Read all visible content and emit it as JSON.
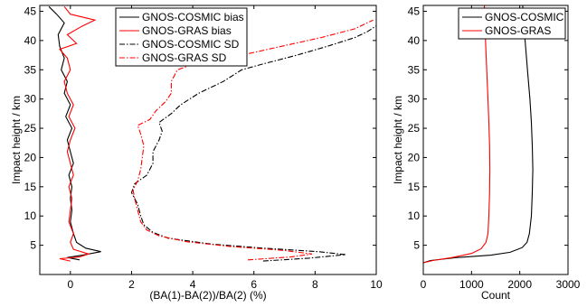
{
  "chart_data": [
    {
      "type": "line",
      "xlabel": "(BA(1)-BA(2))/BA(2) (%)",
      "ylabel": "Impact height / km",
      "xlim": [
        -1,
        10
      ],
      "ylim": [
        0,
        46
      ],
      "xticks": [
        "0",
        "2",
        "4",
        "6",
        "8",
        "10"
      ],
      "yticks": [
        "5",
        "10",
        "15",
        "20",
        "25",
        "30",
        "35",
        "40",
        "45"
      ],
      "grid": false,
      "legend_position": "top-center",
      "series": [
        {
          "name": "GNOS-COSMIC bias",
          "color": "#000000",
          "style": "solid",
          "points": [
            [
              0.3,
              2.5
            ],
            [
              -0.1,
              2.9
            ],
            [
              0.4,
              3.3
            ],
            [
              1.0,
              3.9
            ],
            [
              0.5,
              4.5
            ],
            [
              0.2,
              5.5
            ],
            [
              0.1,
              7
            ],
            [
              0.0,
              9
            ],
            [
              0.05,
              11
            ],
            [
              0.0,
              13
            ],
            [
              0.05,
              15
            ],
            [
              -0.05,
              17
            ],
            [
              0.1,
              19
            ],
            [
              0.0,
              21
            ],
            [
              -0.1,
              23
            ],
            [
              0.05,
              25
            ],
            [
              -0.15,
              27
            ],
            [
              0.0,
              29
            ],
            [
              -0.2,
              31
            ],
            [
              -0.1,
              33
            ],
            [
              -0.3,
              35
            ],
            [
              -0.2,
              37
            ],
            [
              -0.35,
              39
            ],
            [
              -0.4,
              41
            ],
            [
              -0.2,
              43
            ],
            [
              -0.45,
              44.5
            ],
            [
              -0.7,
              45.8
            ]
          ]
        },
        {
          "name": "GNOS-GRAS bias",
          "color": "#ff0000",
          "style": "solid",
          "points": [
            [
              0.0,
              2.3
            ],
            [
              -0.35,
              2.7
            ],
            [
              0.3,
              3.0
            ],
            [
              0.6,
              3.5
            ],
            [
              0.1,
              4.3
            ],
            [
              0.0,
              5.5
            ],
            [
              0.1,
              7
            ],
            [
              -0.05,
              9
            ],
            [
              0.0,
              11
            ],
            [
              0.05,
              13
            ],
            [
              -0.05,
              15
            ],
            [
              0.1,
              17
            ],
            [
              0.0,
              19
            ],
            [
              -0.1,
              21
            ],
            [
              0.0,
              23
            ],
            [
              0.15,
              25
            ],
            [
              -0.05,
              27
            ],
            [
              0.1,
              29
            ],
            [
              -0.1,
              31
            ],
            [
              -0.2,
              33
            ],
            [
              0.0,
              35
            ],
            [
              -0.1,
              37
            ],
            [
              -0.35,
              38.5
            ],
            [
              0.2,
              39.5
            ],
            [
              -0.1,
              41
            ],
            [
              0.4,
              42.5
            ],
            [
              0.8,
              43.5
            ],
            [
              0.0,
              44.5
            ],
            [
              -0.2,
              45.8
            ]
          ]
        },
        {
          "name": "GNOS-COSMIC SD",
          "color": "#000000",
          "style": "dashdot",
          "points": [
            [
              6.3,
              2.3
            ],
            [
              7.8,
              2.8
            ],
            [
              9.0,
              3.4
            ],
            [
              8.1,
              3.9
            ],
            [
              6.3,
              4.5
            ],
            [
              4.6,
              5.2
            ],
            [
              3.2,
              6.2
            ],
            [
              2.7,
              7.2
            ],
            [
              2.4,
              8.5
            ],
            [
              2.3,
              10
            ],
            [
              2.2,
              12
            ],
            [
              2.0,
              14
            ],
            [
              2.1,
              15.5
            ],
            [
              2.5,
              17
            ],
            [
              2.7,
              19
            ],
            [
              2.7,
              21
            ],
            [
              2.9,
              23
            ],
            [
              3.0,
              24.5
            ],
            [
              2.9,
              26
            ],
            [
              3.3,
              27.5
            ],
            [
              3.6,
              29
            ],
            [
              4.2,
              31
            ],
            [
              5.0,
              33
            ],
            [
              5.6,
              35
            ],
            [
              6.3,
              36
            ],
            [
              7.4,
              37.5
            ],
            [
              8.4,
              39
            ],
            [
              9.3,
              40.5
            ],
            [
              9.7,
              41.5
            ],
            [
              10.0,
              42.5
            ]
          ]
        },
        {
          "name": "GNOS-GRAS SD",
          "color": "#ff0000",
          "style": "dashdot",
          "points": [
            [
              5.8,
              2.5
            ],
            [
              7.2,
              3.0
            ],
            [
              7.9,
              3.5
            ],
            [
              7.0,
              4.1
            ],
            [
              5.2,
              4.8
            ],
            [
              3.8,
              5.6
            ],
            [
              2.9,
              6.6
            ],
            [
              2.5,
              7.6
            ],
            [
              2.3,
              9
            ],
            [
              2.2,
              11
            ],
            [
              2.1,
              13
            ],
            [
              2.05,
              14.5
            ],
            [
              2.2,
              16
            ],
            [
              2.3,
              18
            ],
            [
              2.35,
              20
            ],
            [
              2.4,
              22
            ],
            [
              2.3,
              24
            ],
            [
              2.2,
              25.5
            ],
            [
              2.6,
              26.5
            ],
            [
              2.8,
              28
            ],
            [
              3.1,
              29.5
            ],
            [
              3.3,
              31
            ],
            [
              3.3,
              33
            ],
            [
              3.5,
              35
            ],
            [
              4.2,
              36.3
            ],
            [
              5.6,
              37.5
            ],
            [
              6.9,
              39
            ],
            [
              8.2,
              40.5
            ],
            [
              9.3,
              42
            ],
            [
              9.9,
              43.5
            ]
          ]
        }
      ]
    },
    {
      "type": "line",
      "xlabel": "Count",
      "ylabel": "",
      "xlim": [
        0,
        3000
      ],
      "ylim": [
        0,
        46
      ],
      "xticks": [
        "0",
        "1000",
        "2000",
        "3000"
      ],
      "yticks": [
        "5",
        "10",
        "15",
        "20",
        "25",
        "30",
        "35",
        "40",
        "45"
      ],
      "grid": false,
      "legend_position": "top-center",
      "series": [
        {
          "name": "GNOS-COSMIC",
          "color": "#000000",
          "style": "solid",
          "points": [
            [
              0,
              2
            ],
            [
              150,
              2.4
            ],
            [
              700,
              2.9
            ],
            [
              1400,
              3.3
            ],
            [
              1800,
              3.8
            ],
            [
              2050,
              4.6
            ],
            [
              2150,
              5.5
            ],
            [
              2200,
              7
            ],
            [
              2240,
              10
            ],
            [
              2260,
              14
            ],
            [
              2270,
              18
            ],
            [
              2260,
              22
            ],
            [
              2240,
              26
            ],
            [
              2210,
              30
            ],
            [
              2170,
              34
            ],
            [
              2130,
              38
            ],
            [
              2090,
              42
            ],
            [
              2060,
              46
            ]
          ]
        },
        {
          "name": "GNOS-GRAS",
          "color": "#ff0000",
          "style": "solid",
          "points": [
            [
              0,
              2
            ],
            [
              200,
              2.4
            ],
            [
              600,
              2.9
            ],
            [
              1000,
              3.6
            ],
            [
              1200,
              4.4
            ],
            [
              1300,
              5.5
            ],
            [
              1340,
              7
            ],
            [
              1360,
              10
            ],
            [
              1375,
              14
            ],
            [
              1380,
              18
            ],
            [
              1375,
              22
            ],
            [
              1360,
              26
            ],
            [
              1340,
              30
            ],
            [
              1320,
              34
            ],
            [
              1300,
              38
            ],
            [
              1280,
              42
            ],
            [
              1265,
              46
            ]
          ]
        }
      ]
    }
  ]
}
